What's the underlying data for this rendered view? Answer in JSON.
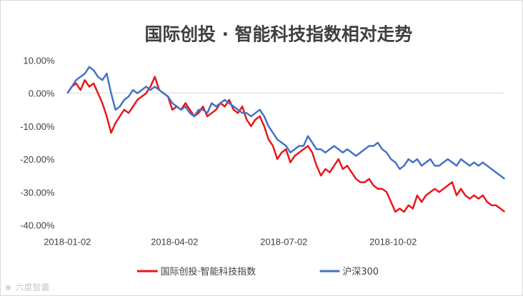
{
  "chart_data": {
    "type": "line",
    "title": "国际创投 · 智能科技指数相对走势",
    "xlabel": "",
    "ylabel": "",
    "x_ticks": [
      "2018-01-02",
      "2018-04-02",
      "2018-07-02",
      "2018-10-02"
    ],
    "y_ticks": [
      "10.00%",
      "0.00%",
      "-10.00%",
      "-20.00%",
      "-30.00%",
      "-40.00%"
    ],
    "ylim": [
      -40,
      10
    ],
    "xlim": [
      0,
      100
    ],
    "grid": false,
    "legend_position": "bottom",
    "series": [
      {
        "name": "国际创投·智能科技指数",
        "color": "#e8161b",
        "x": [
          0,
          1,
          2,
          3,
          4,
          5,
          6,
          7,
          8,
          9,
          10,
          11,
          12,
          13,
          14,
          15,
          16,
          17,
          18,
          19,
          20,
          21,
          22,
          23,
          24,
          25,
          26,
          27,
          28,
          29,
          30,
          31,
          32,
          33,
          34,
          35,
          36,
          37,
          38,
          39,
          40,
          41,
          42,
          43,
          44,
          45,
          46,
          47,
          48,
          49,
          50,
          51,
          52,
          53,
          54,
          55,
          56,
          57,
          58,
          59,
          60,
          61,
          62,
          63,
          64,
          65,
          66,
          67,
          68,
          69,
          70,
          71,
          72,
          73,
          74,
          75,
          76,
          77,
          78,
          79,
          80,
          81,
          82,
          83,
          84,
          85,
          86,
          87,
          88,
          89,
          90,
          91,
          92,
          93,
          94,
          95,
          96,
          97,
          98,
          99,
          100
        ],
        "values": [
          0,
          2,
          3,
          1,
          4,
          2,
          3,
          0,
          -3,
          -7,
          -12,
          -9,
          -7,
          -5,
          -6,
          -4,
          -2,
          -1,
          0,
          2,
          5,
          1,
          0,
          -1,
          -5,
          -4,
          -5,
          -3,
          -5,
          -7,
          -6,
          -4,
          -7,
          -6,
          -5,
          -3,
          -4,
          -2,
          -5,
          -6,
          -4,
          -8,
          -10,
          -8,
          -7,
          -10,
          -14,
          -16,
          -20,
          -18,
          -17,
          -21,
          -19,
          -18,
          -17,
          -16,
          -18,
          -22,
          -25,
          -23,
          -24,
          -22,
          -20,
          -23,
          -22,
          -24,
          -26,
          -27,
          -27,
          -26,
          -28,
          -29,
          -29,
          -30,
          -33,
          -36,
          -35,
          -36,
          -34,
          -35,
          -31,
          -33,
          -31,
          -30,
          -29,
          -30,
          -29,
          -28,
          -27,
          -31,
          -29,
          -31,
          -32,
          -31,
          -32,
          -31,
          -33,
          -34,
          -34,
          -35,
          -36
        ]
      },
      {
        "name": "沪深300",
        "color": "#4472c4",
        "x": [
          0,
          1,
          2,
          3,
          4,
          5,
          6,
          7,
          8,
          9,
          10,
          11,
          12,
          13,
          14,
          15,
          16,
          17,
          18,
          19,
          20,
          21,
          22,
          23,
          24,
          25,
          26,
          27,
          28,
          29,
          30,
          31,
          32,
          33,
          34,
          35,
          36,
          37,
          38,
          39,
          40,
          41,
          42,
          43,
          44,
          45,
          46,
          47,
          48,
          49,
          50,
          51,
          52,
          53,
          54,
          55,
          56,
          57,
          58,
          59,
          60,
          61,
          62,
          63,
          64,
          65,
          66,
          67,
          68,
          69,
          70,
          71,
          72,
          73,
          74,
          75,
          76,
          77,
          78,
          79,
          80,
          81,
          82,
          83,
          84,
          85,
          86,
          87,
          88,
          89,
          90,
          91,
          92,
          93,
          94,
          95,
          96,
          97,
          98,
          99,
          100
        ],
        "values": [
          0,
          2,
          4,
          5,
          6,
          8,
          7,
          5,
          4,
          6,
          0,
          -5,
          -4,
          -2,
          -1,
          1,
          0,
          1,
          2,
          1,
          2,
          1,
          0,
          -1,
          -3,
          -4,
          -5,
          -4,
          -6,
          -7,
          -5,
          -5,
          -6,
          -3,
          -4,
          -3,
          -2,
          -3,
          -4,
          -5,
          -6,
          -6,
          -7,
          -6,
          -5,
          -7,
          -10,
          -12,
          -14,
          -15,
          -16,
          -18,
          -17,
          -16,
          -16,
          -13,
          -15,
          -17,
          -17,
          -18,
          -17,
          -16,
          -17,
          -18,
          -17,
          -18,
          -19,
          -18,
          -17,
          -16,
          -16,
          -15,
          -17,
          -18,
          -20,
          -21,
          -23,
          -22,
          -20,
          -21,
          -20,
          -22,
          -21,
          -20,
          -22,
          -22,
          -21,
          -20,
          -21,
          -22,
          -20,
          -21,
          -22,
          -21,
          -22,
          -21,
          -22,
          -23,
          -24,
          -25,
          -26
        ]
      }
    ]
  },
  "watermark": "六度智囊"
}
